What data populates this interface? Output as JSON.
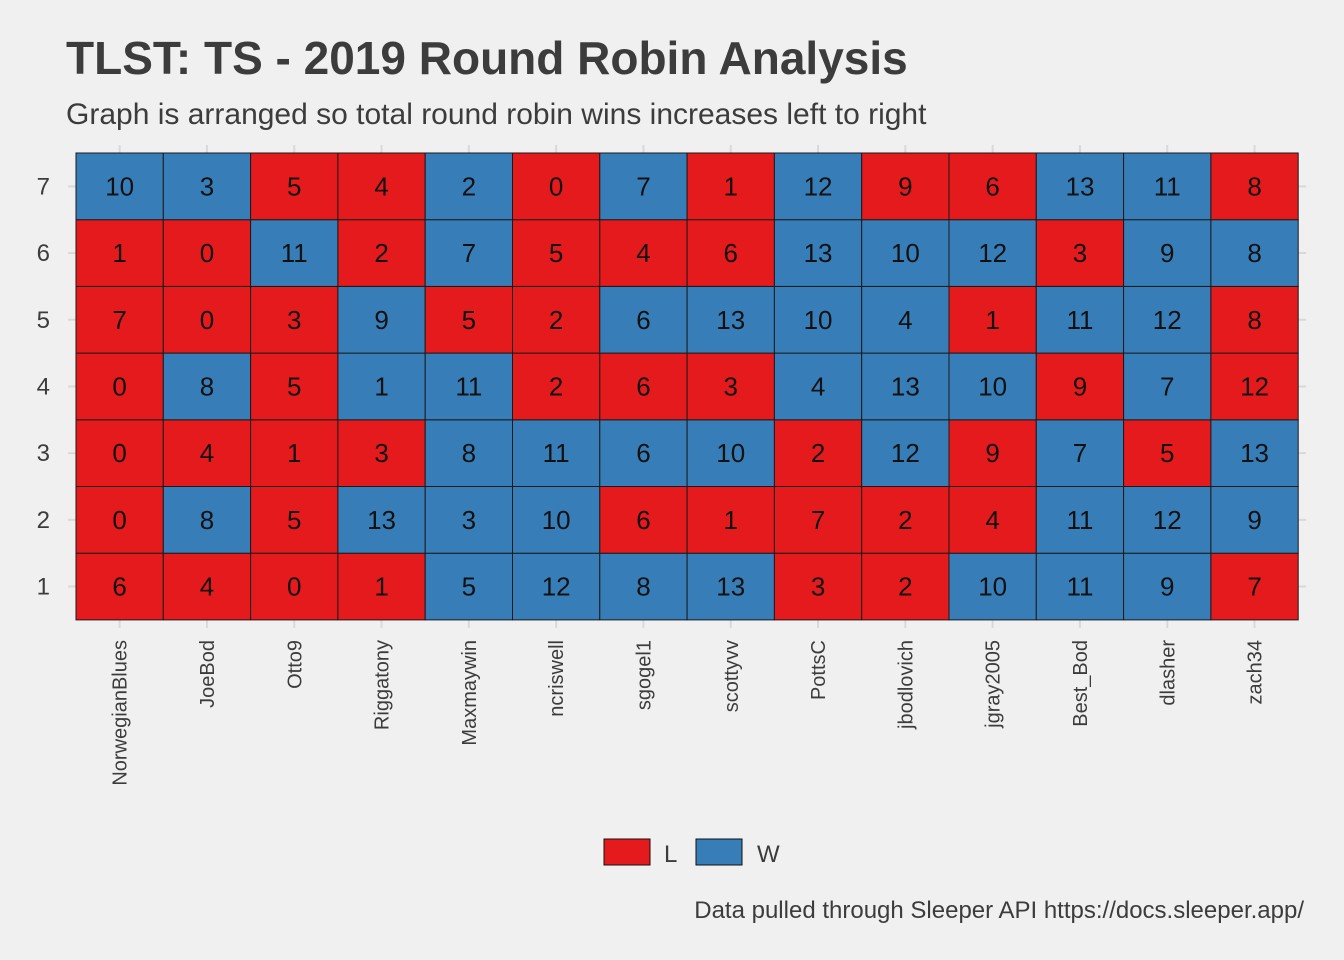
{
  "chart_data": {
    "type": "heatmap",
    "title": "TLST: TS - 2019 Round Robin Analysis",
    "subtitle": "Graph is arranged so total round robin wins increases left to right",
    "caption": "Data pulled through Sleeper API https://docs.sleeper.app/",
    "x_categories": [
      "NorwegianBlues",
      "JoeBod",
      "Otto9",
      "Riggatony",
      "Maxmaywin",
      "ncriswell",
      "sgogel1",
      "scottyvv",
      "PottsC",
      "jbodlovich",
      "jgray2005",
      "Best_Bod",
      "dlasher",
      "zach34"
    ],
    "y_categories": [
      "1",
      "2",
      "3",
      "4",
      "5",
      "6",
      "7"
    ],
    "values": [
      [
        6,
        4,
        0,
        1,
        5,
        12,
        8,
        13,
        3,
        2,
        10,
        11,
        9,
        7
      ],
      [
        0,
        8,
        5,
        13,
        3,
        10,
        6,
        1,
        7,
        2,
        4,
        11,
        12,
        9
      ],
      [
        0,
        4,
        1,
        3,
        8,
        11,
        6,
        10,
        2,
        12,
        9,
        7,
        5,
        13
      ],
      [
        0,
        8,
        5,
        1,
        11,
        2,
        6,
        3,
        4,
        13,
        10,
        9,
        7,
        12
      ],
      [
        7,
        0,
        3,
        9,
        5,
        2,
        6,
        13,
        10,
        4,
        1,
        11,
        12,
        8
      ],
      [
        1,
        0,
        11,
        2,
        7,
        5,
        4,
        6,
        13,
        10,
        12,
        3,
        9,
        8
      ],
      [
        10,
        3,
        5,
        4,
        2,
        0,
        7,
        1,
        12,
        9,
        6,
        13,
        11,
        8
      ]
    ],
    "outcomes": [
      [
        "L",
        "L",
        "L",
        "L",
        "W",
        "W",
        "W",
        "W",
        "L",
        "L",
        "W",
        "W",
        "W",
        "L"
      ],
      [
        "L",
        "W",
        "L",
        "W",
        "W",
        "W",
        "L",
        "L",
        "L",
        "L",
        "L",
        "W",
        "W",
        "W"
      ],
      [
        "L",
        "L",
        "L",
        "L",
        "W",
        "W",
        "W",
        "W",
        "L",
        "W",
        "L",
        "W",
        "L",
        "W"
      ],
      [
        "L",
        "W",
        "L",
        "W",
        "W",
        "L",
        "L",
        "L",
        "W",
        "W",
        "W",
        "L",
        "W",
        "L"
      ],
      [
        "L",
        "L",
        "L",
        "W",
        "L",
        "L",
        "W",
        "W",
        "W",
        "W",
        "L",
        "W",
        "W",
        "L"
      ],
      [
        "L",
        "L",
        "W",
        "L",
        "W",
        "L",
        "L",
        "L",
        "W",
        "W",
        "W",
        "L",
        "W",
        "W"
      ],
      [
        "W",
        "W",
        "L",
        "L",
        "W",
        "L",
        "W",
        "L",
        "W",
        "L",
        "L",
        "W",
        "W",
        "L"
      ]
    ],
    "legend": {
      "placement": "bottom",
      "entries": [
        {
          "key": "L",
          "label": "L",
          "color": "#e41a1c"
        },
        {
          "key": "W",
          "label": "W",
          "color": "#377eb8"
        }
      ]
    },
    "grid": true
  }
}
